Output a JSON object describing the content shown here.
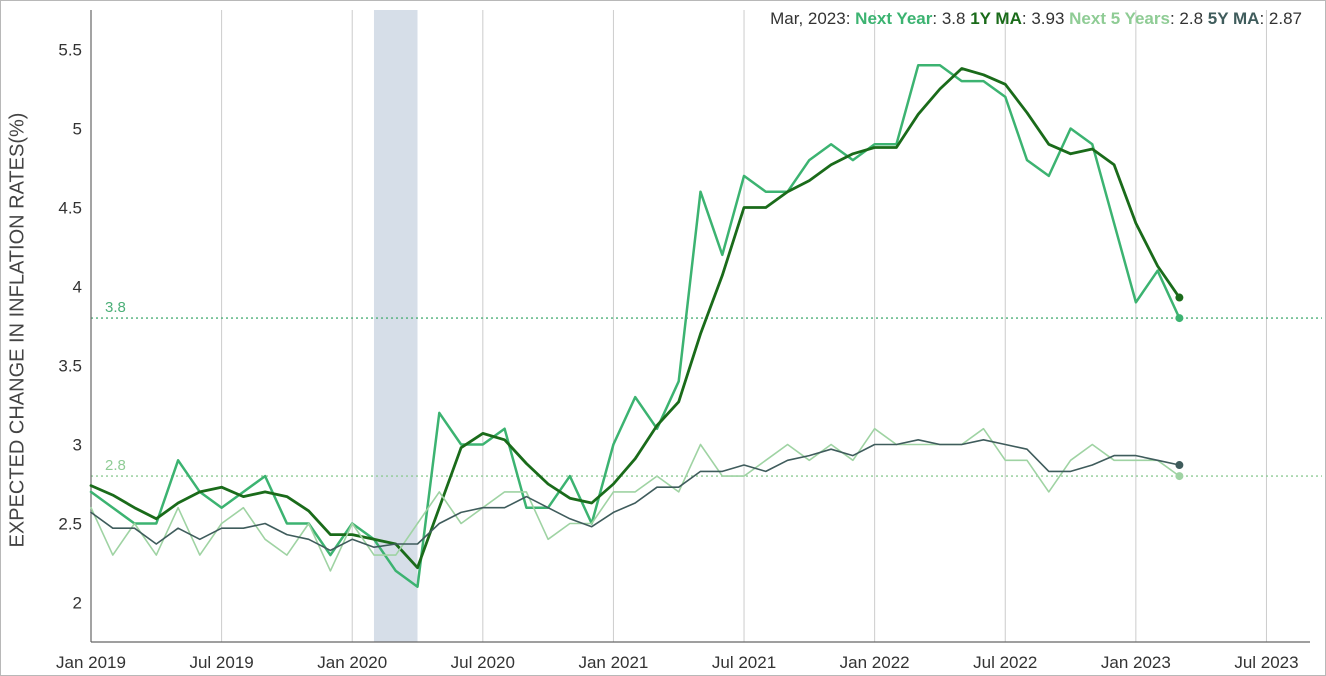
{
  "chart_data": {
    "type": "line",
    "ylabel": "EXPECTED CHANGE IN INFLATION RATES(%)",
    "ylim": [
      1.75,
      5.75
    ],
    "y_ticks": [
      "2",
      "2.5",
      "3",
      "3.5",
      "4",
      "4.5",
      "5",
      "5.5"
    ],
    "x_ticks": [
      "Jan 2019",
      "Jul 2019",
      "Jan 2020",
      "Jul 2020",
      "Jan 2021",
      "Jul 2021",
      "Jan 2022",
      "Jul 2022",
      "Jan 2023",
      "Jul 2023"
    ],
    "x_range": [
      "2019-01",
      "2023-09"
    ],
    "grid": {
      "vertical": true,
      "horizontal": false
    },
    "shaded_period": [
      "2020-02",
      "2020-04"
    ],
    "reference_lines": [
      {
        "value": 3.8,
        "label": "3.8",
        "color": "#4caf78"
      },
      {
        "value": 2.8,
        "label": "2.8",
        "color": "#8fcc95"
      }
    ],
    "x": [
      "2019-01",
      "2019-02",
      "2019-03",
      "2019-04",
      "2019-05",
      "2019-06",
      "2019-07",
      "2019-08",
      "2019-09",
      "2019-10",
      "2019-11",
      "2019-12",
      "2020-01",
      "2020-02",
      "2020-03",
      "2020-04",
      "2020-05",
      "2020-06",
      "2020-07",
      "2020-08",
      "2020-09",
      "2020-10",
      "2020-11",
      "2020-12",
      "2021-01",
      "2021-02",
      "2021-03",
      "2021-04",
      "2021-05",
      "2021-06",
      "2021-07",
      "2021-08",
      "2021-09",
      "2021-10",
      "2021-11",
      "2021-12",
      "2022-01",
      "2022-02",
      "2022-03",
      "2022-04",
      "2022-05",
      "2022-06",
      "2022-07",
      "2022-08",
      "2022-09",
      "2022-10",
      "2022-11",
      "2022-12",
      "2023-01",
      "2023-02",
      "2023-03"
    ],
    "series": [
      {
        "name": "Next Year",
        "color": "#3cb371",
        "width": 2.5,
        "values": [
          2.7,
          2.6,
          2.5,
          2.5,
          2.9,
          2.7,
          2.6,
          2.7,
          2.8,
          2.5,
          2.5,
          2.3,
          2.5,
          2.4,
          2.2,
          2.1,
          3.2,
          3.0,
          3.0,
          3.1,
          2.6,
          2.6,
          2.8,
          2.5,
          3.0,
          3.3,
          3.1,
          3.4,
          4.6,
          4.2,
          4.7,
          4.6,
          4.6,
          4.8,
          4.9,
          4.8,
          4.9,
          4.9,
          5.4,
          5.4,
          5.3,
          5.3,
          5.2,
          4.8,
          4.7,
          5.0,
          4.9,
          4.4,
          3.9,
          4.1,
          3.8
        ]
      },
      {
        "name": "1Y MA",
        "color": "#1a6b1a",
        "width": 2.8,
        "values": [
          2.74,
          2.68,
          2.6,
          2.53,
          2.63,
          2.7,
          2.73,
          2.67,
          2.7,
          2.67,
          2.58,
          2.43,
          2.43,
          2.4,
          2.37,
          2.22,
          2.6,
          2.98,
          3.07,
          3.03,
          2.88,
          2.75,
          2.66,
          2.63,
          2.75,
          2.91,
          3.12,
          3.27,
          3.7,
          4.07,
          4.5,
          4.5,
          4.6,
          4.67,
          4.77,
          4.84,
          4.88,
          4.88,
          5.09,
          5.25,
          5.38,
          5.34,
          5.28,
          5.1,
          4.9,
          4.84,
          4.87,
          4.77,
          4.4,
          4.13,
          3.93
        ]
      },
      {
        "name": "Next 5 Years",
        "color": "#9fd3a3",
        "width": 1.6,
        "values": [
          2.6,
          2.3,
          2.5,
          2.3,
          2.6,
          2.3,
          2.5,
          2.6,
          2.4,
          2.3,
          2.5,
          2.2,
          2.5,
          2.3,
          2.3,
          2.5,
          2.7,
          2.5,
          2.6,
          2.7,
          2.7,
          2.4,
          2.5,
          2.5,
          2.7,
          2.7,
          2.8,
          2.7,
          3.0,
          2.8,
          2.8,
          2.9,
          3.0,
          2.9,
          3.0,
          2.9,
          3.1,
          3.0,
          3.0,
          3.0,
          3.0,
          3.1,
          2.9,
          2.9,
          2.7,
          2.9,
          3.0,
          2.9,
          2.9,
          2.9,
          2.8
        ]
      },
      {
        "name": "5Y MA",
        "color": "#3f5c5c",
        "width": 1.6,
        "values": [
          2.57,
          2.47,
          2.47,
          2.37,
          2.47,
          2.4,
          2.47,
          2.47,
          2.5,
          2.43,
          2.4,
          2.33,
          2.4,
          2.35,
          2.37,
          2.37,
          2.5,
          2.57,
          2.6,
          2.6,
          2.67,
          2.6,
          2.53,
          2.48,
          2.57,
          2.63,
          2.73,
          2.73,
          2.83,
          2.83,
          2.87,
          2.83,
          2.9,
          2.93,
          2.97,
          2.93,
          3.0,
          3.0,
          3.03,
          3.0,
          3.0,
          3.03,
          3.0,
          2.97,
          2.83,
          2.83,
          2.87,
          2.93,
          2.93,
          2.9,
          2.87
        ]
      }
    ]
  },
  "legend": {
    "date": "Mar, 2023:",
    "items": [
      {
        "label": "Next Year",
        "value": "3.8",
        "color": "#3cb371"
      },
      {
        "label": "1Y MA",
        "value": "3.93",
        "color": "#1a6b1a"
      },
      {
        "label": "Next 5 Years",
        "value": "2.8",
        "color": "#8fcc95"
      },
      {
        "label": "5Y MA",
        "value": "2.87",
        "color": "#3f5c5c"
      }
    ]
  }
}
